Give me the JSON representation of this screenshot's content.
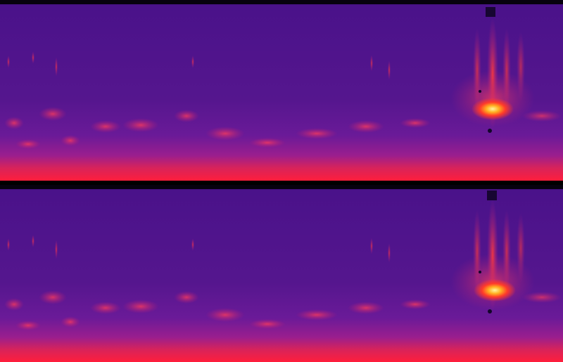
{
  "view": {
    "type": "stereo spectrogram",
    "channels": [
      {
        "id": "top-channel"
      },
      {
        "id": "bottom-channel"
      }
    ],
    "colormap": [
      "#000000",
      "#2a0a6e",
      "#4a0f8a",
      "#6a1aa0",
      "#b0248a",
      "#e8264a",
      "#ff5a1e",
      "#ffb020",
      "#fff8a0"
    ]
  }
}
